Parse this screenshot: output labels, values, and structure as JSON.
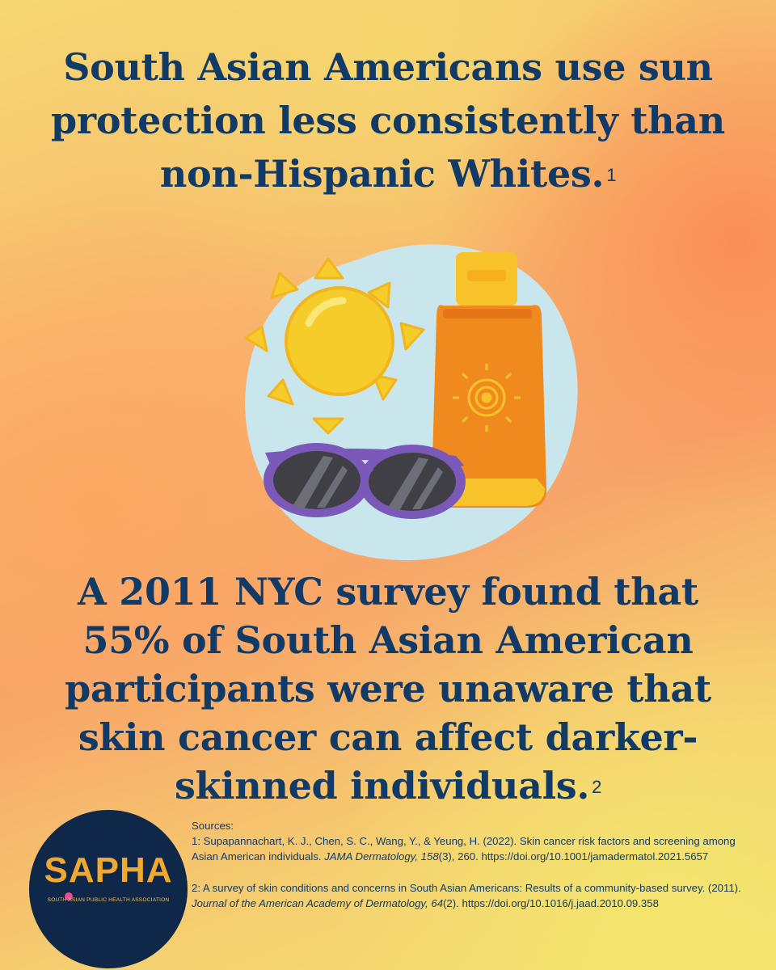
{
  "headline": {
    "text": "South Asian Americans use sun protection less consistently than non-Hispanic Whites.",
    "ref": "1"
  },
  "stat": {
    "text": "A 2011 NYC survey found that 55% of South Asian American participants were unaware that skin cancer can affect darker-skinned individuals.",
    "ref": "2"
  },
  "illustration": {
    "icons": [
      "sun-icon",
      "sunscreen-bottle-icon",
      "sunglasses-icon"
    ]
  },
  "logo": {
    "name": "SAPHA",
    "subtitle": "SOUTH ASIAN PUBLIC HEALTH ASSOCIATION"
  },
  "sources": {
    "heading": "Sources:",
    "items": [
      {
        "prefix": "1: Supapannachart, K. J., Chen, S. C., Wang, Y., & Yeung, H. (2022). Skin cancer risk factors and screening among Asian American individuals.",
        "journal": "JAMA Dermatology, 158",
        "suffix": "(3), 260.",
        "doi": "https://doi.org/10.1001/jamadermatol.2021.5657"
      },
      {
        "prefix": "2: A survey of skin conditions and concerns in South Asian Americans: Results of a community-based survey. (2011).",
        "journal": "Journal of the American Academy of Dermatology, 64",
        "suffix": "(2).",
        "doi": "https://doi.org/10.1016/j.jaad.2010.09.358"
      }
    ]
  },
  "colors": {
    "headline_text": "#123a67",
    "blob": "#c9e6ec",
    "sun": "#f6cc2a",
    "bottle": "#f08a1e",
    "cap": "#f8c32a",
    "sunglasses_frame": "#7a59b8",
    "logo_bg": "#0f2748",
    "logo_text": "#f0a830"
  }
}
